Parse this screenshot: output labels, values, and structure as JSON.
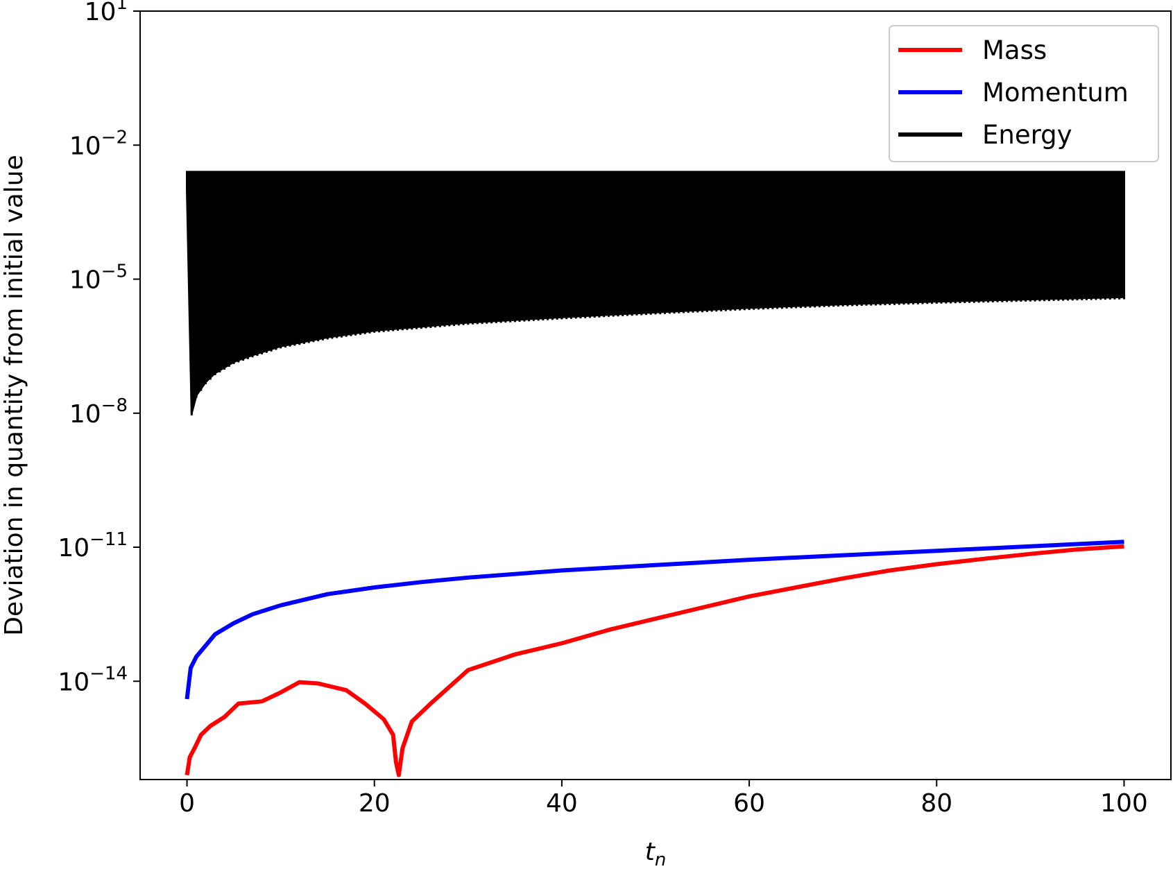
{
  "chart_data": {
    "type": "line",
    "title": "",
    "xlabel": "t",
    "xlabel_sub": "n",
    "ylabel": "Deviation in quantity from initial value",
    "xlim": [
      -5,
      105
    ],
    "ylim_log10": [
      -16.2,
      1
    ],
    "y_scale": "log",
    "grid": false,
    "legend_position": "top-right",
    "x_ticks": [
      {
        "value": 0,
        "label": "0"
      },
      {
        "value": 20,
        "label": "20"
      },
      {
        "value": 40,
        "label": "40"
      },
      {
        "value": 60,
        "label": "60"
      },
      {
        "value": 80,
        "label": "80"
      },
      {
        "value": 100,
        "label": "100"
      }
    ],
    "y_ticks": [
      {
        "exp": 1,
        "base": "10",
        "sup": "1"
      },
      {
        "exp": -2,
        "base": "10",
        "sup": "−2"
      },
      {
        "exp": -5,
        "base": "10",
        "sup": "−5"
      },
      {
        "exp": -8,
        "base": "10",
        "sup": "−8"
      },
      {
        "exp": -11,
        "base": "10",
        "sup": "−11"
      },
      {
        "exp": -14,
        "base": "10",
        "sup": "−14"
      }
    ],
    "series": [
      {
        "name": "Mass",
        "color": "#ff0000",
        "style": "line",
        "points": [
          [
            0,
            -16.1
          ],
          [
            0.3,
            -15.7
          ],
          [
            0.8,
            -15.5
          ],
          [
            1.5,
            -15.2
          ],
          [
            2.5,
            -15.0
          ],
          [
            4,
            -14.8
          ],
          [
            5.5,
            -14.5
          ],
          [
            8,
            -14.45
          ],
          [
            10,
            -14.25
          ],
          [
            12,
            -14.02
          ],
          [
            14,
            -14.05
          ],
          [
            17,
            -14.2
          ],
          [
            19,
            -14.5
          ],
          [
            21,
            -14.85
          ],
          [
            22,
            -15.2
          ],
          [
            22.3,
            -15.8
          ],
          [
            22.6,
            -16.1
          ],
          [
            23,
            -15.5
          ],
          [
            24,
            -14.9
          ],
          [
            26,
            -14.5
          ],
          [
            30,
            -13.75
          ],
          [
            35,
            -13.4
          ],
          [
            40,
            -13.15
          ],
          [
            45,
            -12.85
          ],
          [
            50,
            -12.6
          ],
          [
            55,
            -12.35
          ],
          [
            60,
            -12.1
          ],
          [
            65,
            -11.9
          ],
          [
            70,
            -11.7
          ],
          [
            75,
            -11.52
          ],
          [
            80,
            -11.38
          ],
          [
            85,
            -11.26
          ],
          [
            90,
            -11.15
          ],
          [
            95,
            -11.05
          ],
          [
            100,
            -10.98
          ]
        ]
      },
      {
        "name": "Momentum",
        "color": "#0000ff",
        "style": "line",
        "points": [
          [
            0,
            -14.4
          ],
          [
            0.4,
            -13.7
          ],
          [
            1,
            -13.45
          ],
          [
            2,
            -13.2
          ],
          [
            3,
            -12.95
          ],
          [
            5,
            -12.7
          ],
          [
            7,
            -12.5
          ],
          [
            10,
            -12.3
          ],
          [
            15,
            -12.05
          ],
          [
            20,
            -11.9
          ],
          [
            25,
            -11.78
          ],
          [
            30,
            -11.68
          ],
          [
            40,
            -11.52
          ],
          [
            50,
            -11.4
          ],
          [
            60,
            -11.28
          ],
          [
            70,
            -11.18
          ],
          [
            80,
            -11.08
          ],
          [
            90,
            -10.98
          ],
          [
            100,
            -10.88
          ]
        ]
      },
      {
        "name": "Energy",
        "color": "#000000",
        "style": "band",
        "upper": [
          [
            0,
            -2.6
          ],
          [
            100,
            -2.6
          ]
        ],
        "lower": [
          [
            0,
            -3.0
          ],
          [
            0.5,
            -8.0
          ],
          [
            1,
            -7.6
          ],
          [
            2,
            -7.3
          ],
          [
            3,
            -7.1
          ],
          [
            5,
            -6.85
          ],
          [
            7,
            -6.7
          ],
          [
            10,
            -6.5
          ],
          [
            15,
            -6.3
          ],
          [
            20,
            -6.15
          ],
          [
            30,
            -5.97
          ],
          [
            40,
            -5.85
          ],
          [
            50,
            -5.74
          ],
          [
            60,
            -5.64
          ],
          [
            70,
            -5.56
          ],
          [
            80,
            -5.5
          ],
          [
            90,
            -5.45
          ],
          [
            100,
            -5.4
          ]
        ],
        "end_level": -4.82
      }
    ],
    "legend": [
      {
        "label": "Mass",
        "color": "#ff0000"
      },
      {
        "label": "Momentum",
        "color": "#0000ff"
      },
      {
        "label": "Energy",
        "color": "#000000"
      }
    ]
  }
}
